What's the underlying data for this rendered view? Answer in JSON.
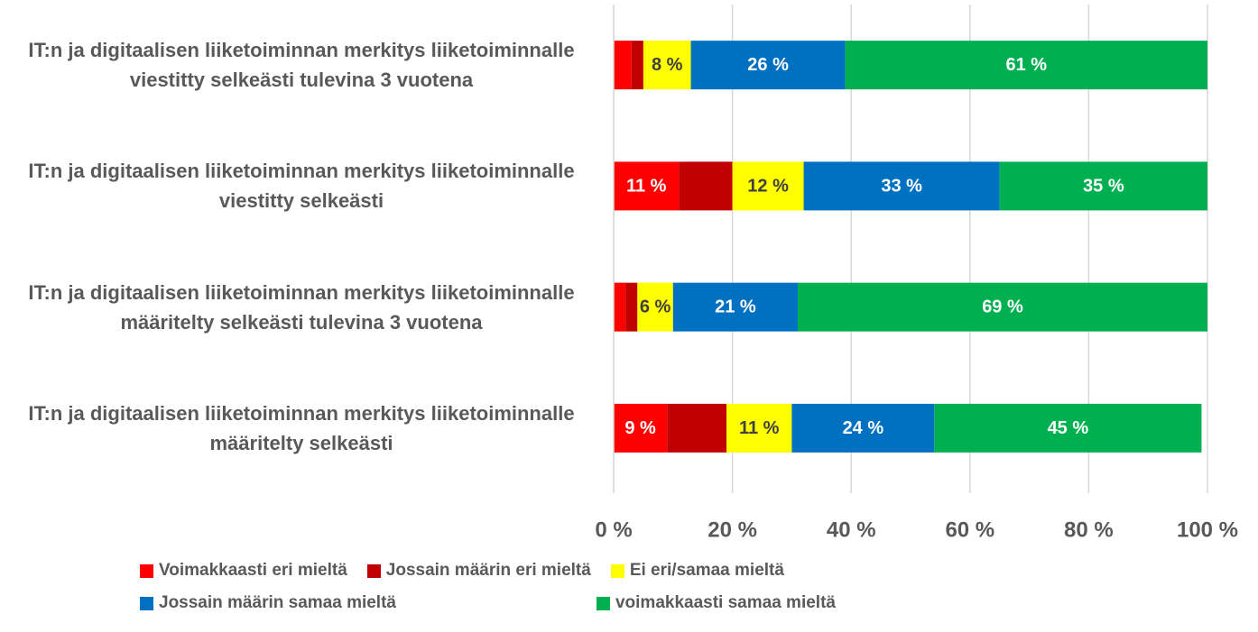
{
  "chart_data": {
    "type": "stacked_bar_horizontal",
    "categories": [
      "IT:n ja digitaalisen liiketoiminnan merkitys liiketoiminnalle viestitty selkeästi tulevina 3 vuotena",
      "IT:n ja digitaalisen liiketoiminnan merkitys liiketoiminnalle viestitty selkeästi",
      "IT:n ja digitaalisen liiketoiminnan merkitys liiketoiminnalle määritelty selkeästi tulevina 3 vuotena",
      "IT:n ja digitaalisen liiketoiminnan merkitys liiketoiminnalle määritelty selkeästi"
    ],
    "series": [
      {
        "name": "Voimakkaasti eri mieltä",
        "color": "#ff0000",
        "values": [
          3,
          11,
          2,
          9
        ],
        "value_labels": [
          null,
          "11 %",
          null,
          "9 %"
        ]
      },
      {
        "name": "Jossain määrin eri mieltä",
        "color": "#c00000",
        "values": [
          2,
          9,
          2,
          10
        ],
        "value_labels": [
          null,
          null,
          null,
          null
        ]
      },
      {
        "name": "Ei eri/samaa mieltä",
        "color": "#ffff00",
        "values": [
          8,
          12,
          6,
          11
        ],
        "value_labels": [
          "8 %",
          "12 %",
          "6 %",
          "11 %"
        ]
      },
      {
        "name": "Jossain määrin samaa mieltä",
        "color": "#0070c0",
        "values": [
          26,
          33,
          21,
          24
        ],
        "value_labels": [
          "26 %",
          "33 %",
          "21 %",
          "24 %"
        ]
      },
      {
        "name": "voimakkaasti samaa mieltä",
        "color": "#00b050",
        "values": [
          61,
          35,
          69,
          45
        ],
        "value_labels": [
          "61 %",
          "35 %",
          "69 %",
          "45 %"
        ]
      }
    ],
    "xlim": [
      0,
      100
    ],
    "xticks": [
      {
        "value": 0,
        "label": "0 %"
      },
      {
        "value": 20,
        "label": "20 %"
      },
      {
        "value": 40,
        "label": "40 %"
      },
      {
        "value": 60,
        "label": "60 %"
      },
      {
        "value": 80,
        "label": "80 %"
      },
      {
        "value": 100,
        "label": "100 %"
      }
    ],
    "grid": true,
    "legend": "bottom"
  }
}
